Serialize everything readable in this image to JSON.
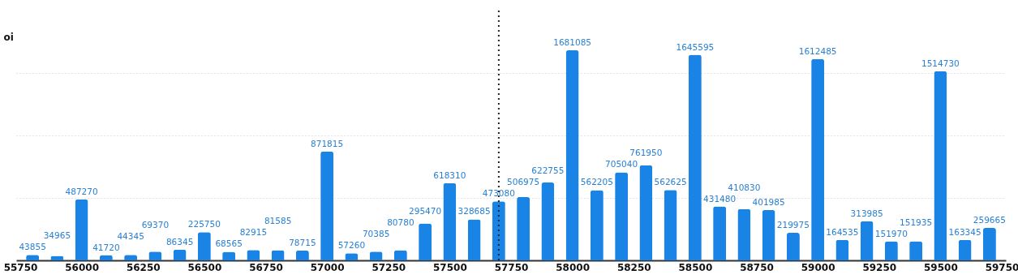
{
  "chart_data": {
    "type": "bar",
    "ylabel": "oi",
    "x": [
      55800,
      55900,
      56000,
      56100,
      56200,
      56300,
      56400,
      56500,
      56600,
      56700,
      56800,
      56900,
      57000,
      57100,
      57200,
      57300,
      57400,
      57500,
      57600,
      57700,
      57800,
      57900,
      58000,
      58100,
      58200,
      58300,
      58400,
      58500,
      58600,
      58700,
      58800,
      58900,
      59000,
      59100,
      59200,
      59300,
      59400,
      59500,
      59600,
      59700
    ],
    "values": [
      43855,
      34965,
      487270,
      41720,
      44345,
      69370,
      86345,
      225750,
      68565,
      82915,
      81585,
      78715,
      871815,
      57260,
      70385,
      80780,
      295470,
      618310,
      328685,
      473080,
      506975,
      622755,
      1681085,
      562205,
      705040,
      761950,
      562625,
      1645595,
      431480,
      410830,
      401985,
      219975,
      1612485,
      164535,
      313985,
      151970,
      151935,
      1514730,
      163345,
      259665
    ],
    "color": "#1a83e6",
    "xlim": [
      55750,
      59750
    ],
    "xticks": [
      55750,
      56000,
      56250,
      56500,
      56750,
      57000,
      57250,
      57500,
      57750,
      58000,
      58250,
      58500,
      58750,
      59000,
      59250,
      59500,
      59750
    ],
    "ylim": [
      0,
      2000000
    ],
    "yticks": [
      {
        "value": 500000,
        "label": null
      },
      {
        "value": 1000000,
        "label": null
      },
      {
        "value": 1500000,
        "label": null
      }
    ],
    "tick_labels": "x",
    "grid": "y",
    "data_labels": true,
    "ref_lines": [
      {
        "axis": "x",
        "value": 57700,
        "color": "#222222",
        "line_style": "dotted"
      }
    ]
  }
}
